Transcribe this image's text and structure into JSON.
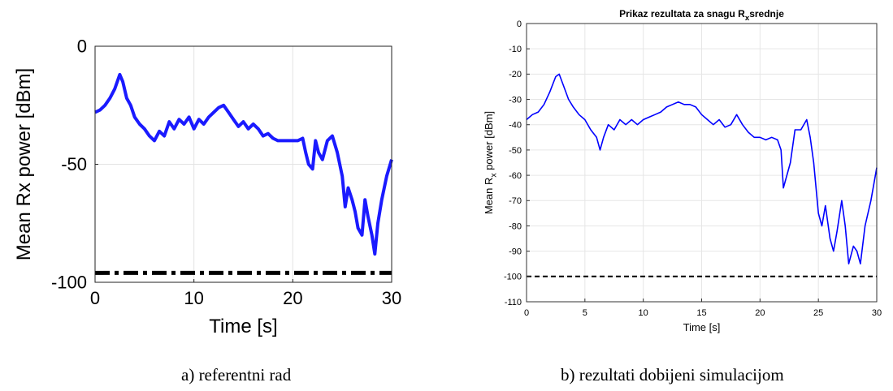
{
  "captions": {
    "left": "a) referentni rad",
    "right": "b) rezultati dobijeni simulacijom"
  },
  "chart_data": [
    {
      "type": "line",
      "title": "",
      "xlabel": "Time [s]",
      "ylabel": "Mean Rx power [dBm]",
      "xlim": [
        0,
        30
      ],
      "ylim": [
        -100,
        0
      ],
      "x_ticks": [
        0,
        10,
        20,
        30
      ],
      "y_ticks": [
        0,
        -50,
        -100
      ],
      "grid": true,
      "series": [
        {
          "style": "solid",
          "color": "#1a1aff",
          "x": [
            0,
            0.5,
            1,
            1.5,
            2,
            2.5,
            2.8,
            3.2,
            3.6,
            4,
            4.5,
            5,
            5.5,
            6,
            6.5,
            7,
            7.5,
            8,
            8.5,
            9,
            9.5,
            10,
            10.5,
            11,
            11.5,
            12,
            12.5,
            13,
            13.5,
            14,
            14.5,
            15,
            15.5,
            16,
            16.5,
            17,
            17.5,
            18,
            18.5,
            19,
            19.5,
            20,
            20.5,
            21,
            21.3,
            21.6,
            22,
            22.3,
            22.6,
            23,
            23.5,
            24,
            24.5,
            25,
            25.3,
            25.6,
            26,
            26.3,
            26.6,
            27,
            27.3,
            27.6,
            28,
            28.3,
            28.6,
            29,
            29.5,
            30
          ],
          "values": [
            -28,
            -27,
            -25,
            -22,
            -18,
            -12,
            -15,
            -22,
            -25,
            -30,
            -33,
            -35,
            -38,
            -40,
            -36,
            -38,
            -32,
            -35,
            -31,
            -33,
            -30,
            -35,
            -31,
            -33,
            -30,
            -28,
            -26,
            -25,
            -28,
            -31,
            -34,
            -32,
            -35,
            -33,
            -35,
            -38,
            -37,
            -39,
            -40,
            -40,
            -40,
            -40,
            -40,
            -39,
            -45,
            -50,
            -52,
            -40,
            -45,
            -48,
            -40,
            -38,
            -45,
            -55,
            -68,
            -60,
            -65,
            -70,
            -77,
            -80,
            -65,
            -72,
            -80,
            -88,
            -75,
            -65,
            -55,
            -48
          ]
        },
        {
          "style": "dash-dot",
          "color": "#000000",
          "x": [
            0,
            30
          ],
          "values": [
            -96,
            -96
          ]
        }
      ]
    },
    {
      "type": "line",
      "title": "Prikaz rezultata za snagu R",
      "title_subscript": "x",
      "title_suffix": "srednje",
      "xlabel": "Time [s]",
      "ylabel": "Mean R",
      "ylabel_subscript": "x",
      "ylabel_suffix": " power [dBm]",
      "xlim": [
        0,
        30
      ],
      "ylim": [
        -110,
        0
      ],
      "x_ticks": [
        0,
        5,
        10,
        15,
        20,
        25,
        30
      ],
      "y_ticks": [
        0,
        -10,
        -20,
        -30,
        -40,
        -50,
        -60,
        -70,
        -80,
        -90,
        -100,
        -110
      ],
      "grid": true,
      "series": [
        {
          "style": "solid",
          "color": "#0000ff",
          "x": [
            0,
            0.5,
            1,
            1.5,
            2,
            2.5,
            2.8,
            3.2,
            3.6,
            4,
            4.5,
            5,
            5.5,
            6,
            6.3,
            6.6,
            7,
            7.5,
            8,
            8.5,
            9,
            9.5,
            10,
            10.5,
            11,
            11.5,
            12,
            12.5,
            13,
            13.5,
            14,
            14.5,
            15,
            15.5,
            16,
            16.5,
            17,
            17.5,
            18,
            18.5,
            19,
            19.5,
            20,
            20.5,
            21,
            21.5,
            21.8,
            22,
            22.3,
            22.6,
            23,
            23.5,
            24,
            24.3,
            24.6,
            25,
            25.3,
            25.6,
            26,
            26.3,
            26.6,
            27,
            27.3,
            27.6,
            28,
            28.3,
            28.6,
            29,
            29.5,
            30
          ],
          "values": [
            -38,
            -36,
            -35,
            -32,
            -27,
            -21,
            -20,
            -25,
            -30,
            -33,
            -36,
            -38,
            -42,
            -45,
            -50,
            -45,
            -40,
            -42,
            -38,
            -40,
            -38,
            -40,
            -38,
            -37,
            -36,
            -35,
            -33,
            -32,
            -31,
            -32,
            -32,
            -33,
            -36,
            -38,
            -40,
            -38,
            -41,
            -40,
            -36,
            -40,
            -43,
            -45,
            -45,
            -46,
            -45,
            -46,
            -50,
            -65,
            -60,
            -55,
            -42,
            -42,
            -38,
            -45,
            -55,
            -75,
            -80,
            -72,
            -85,
            -90,
            -82,
            -70,
            -80,
            -95,
            -88,
            -90,
            -95,
            -80,
            -70,
            -57
          ]
        },
        {
          "style": "dashed",
          "color": "#000000",
          "x": [
            0,
            30
          ],
          "values": [
            -100,
            -100
          ]
        }
      ]
    }
  ]
}
